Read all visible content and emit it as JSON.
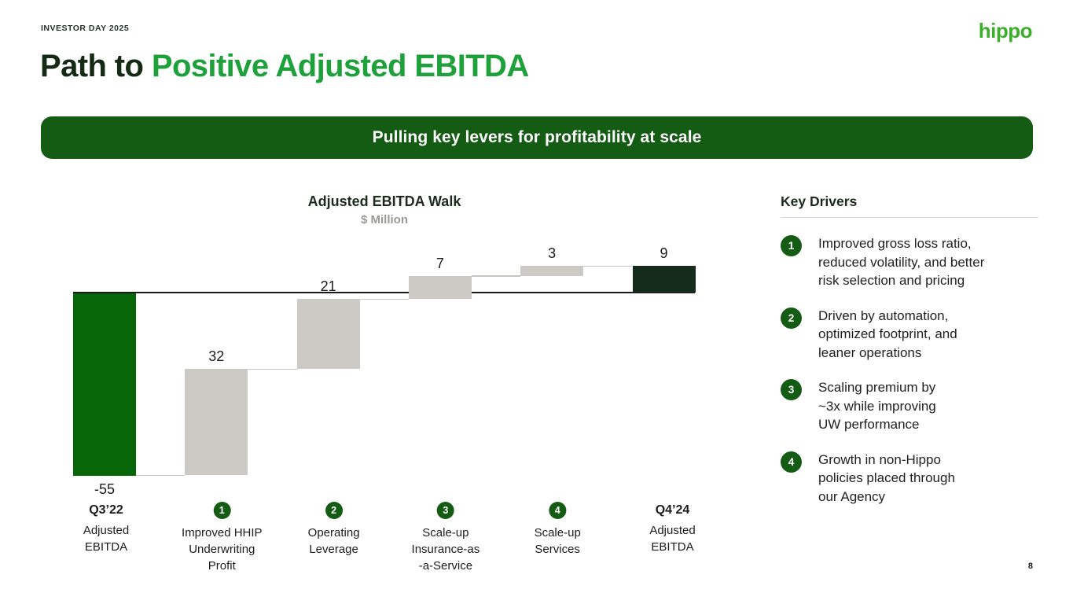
{
  "header": {
    "eyebrow": "INVESTOR DAY 2025",
    "logo": "hippo",
    "title_dark": "Path to ",
    "title_green": "Positive Adjusted EBITDA"
  },
  "banner": {
    "text": "Pulling key levers for profitability at scale"
  },
  "chart_data": {
    "type": "waterfall",
    "title": "Adjusted EBITDA Walk",
    "subtitle": "$ Million",
    "ylabel": "$ Million",
    "ylim": [
      -55,
      10
    ],
    "baseline": 0,
    "grid": false,
    "steps": [
      {
        "label_lines": [
          "Q3’22",
          "Adjusted",
          "EBITDA"
        ],
        "badge": null,
        "kind": "start",
        "value": -55,
        "display": "-55"
      },
      {
        "label_lines": [
          "Improved HHIP",
          "Underwriting",
          "Profit"
        ],
        "badge": "1",
        "kind": "delta",
        "value": 32,
        "display": "32"
      },
      {
        "label_lines": [
          "Operating",
          "Leverage"
        ],
        "badge": "2",
        "kind": "delta",
        "value": 21,
        "display": "21"
      },
      {
        "label_lines": [
          "Scale-up",
          "Insurance-as",
          "-a-Service"
        ],
        "badge": "3",
        "kind": "delta",
        "value": 7,
        "display": "7"
      },
      {
        "label_lines": [
          "Scale-up",
          "Services"
        ],
        "badge": "4",
        "kind": "delta",
        "value": 3,
        "display": "3"
      },
      {
        "label_lines": [
          "Q4’24",
          "Adjusted",
          "EBITDA"
        ],
        "badge": null,
        "kind": "total",
        "value": 9,
        "display": "9"
      }
    ],
    "colors": {
      "start": "#076607",
      "delta": "#cbcac4",
      "total": "#152b1c",
      "baseline": "#1a1a1a",
      "connector": "#c7c6c0",
      "badge": "#145C14"
    }
  },
  "key_drivers": {
    "title": "Key Drivers",
    "items": [
      {
        "badge": "1",
        "text": [
          "Improved gross loss ratio,",
          "reduced volatility, and better",
          "risk selection and pricing"
        ]
      },
      {
        "badge": "2",
        "text": [
          "Driven by automation,",
          "optimized footprint, and",
          "leaner operations"
        ]
      },
      {
        "badge": "3",
        "text": [
          "Scaling premium by",
          "~3x while improving",
          "UW performance"
        ]
      },
      {
        "badge": "4",
        "text": [
          "Growth in non-Hippo",
          "policies placed through",
          "our Agency"
        ]
      }
    ]
  },
  "footer": {
    "page_number": "8"
  }
}
